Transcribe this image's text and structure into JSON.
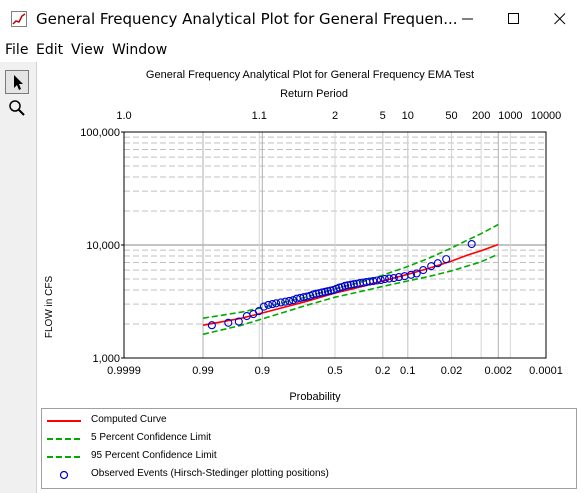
{
  "window": {
    "title": "General Frequency Analytical Plot for General Frequen...",
    "minimize_label": "—",
    "maximize_label": "☐",
    "close_label": "✕"
  },
  "menu": {
    "items": [
      "File",
      "Edit",
      "View",
      "Window"
    ]
  },
  "toolbar": {
    "items": [
      {
        "name": "pointer-tool",
        "icon": "arrow-cursor-icon",
        "active": true
      },
      {
        "name": "zoom-tool",
        "icon": "magnifier-icon",
        "active": false
      }
    ]
  },
  "chart_data": {
    "type": "line",
    "title": "General Frequency Analytical Plot for General Frequency EMA Test",
    "top_axis_label": "Return Period",
    "ylabel": "FLOW in CFS",
    "xlabel": "Probability",
    "y_scale": "log",
    "ylim": [
      1000,
      100000
    ],
    "y_tick_labels": [
      "100,000",
      "10,000",
      "1,000"
    ],
    "x_scale": "normal-probability (exceedance, decreasing left to right)",
    "xlim": [
      0.9999,
      0.0001
    ],
    "x_tick_labels": [
      "0.9999",
      "0.99",
      "0.9",
      "0.5",
      "0.2",
      "0.1",
      "0.02",
      "0.002",
      "0.0001"
    ],
    "x_tick_values": [
      0.9999,
      0.99,
      0.9,
      0.5,
      0.2,
      0.1,
      0.02,
      0.002,
      0.0001
    ],
    "top_tick_labels": [
      "1.0",
      "1.1",
      "2",
      "5",
      "10",
      "50",
      "200",
      "1000",
      "10000"
    ],
    "top_tick_values": [
      1.0001,
      1.1,
      2,
      5,
      10,
      50,
      200,
      1000,
      10000
    ],
    "grid": true,
    "series": [
      {
        "name": "Computed Curve",
        "color": "#ff0000",
        "style": "solid",
        "x": [
          0.99,
          0.95,
          0.9,
          0.7,
          0.5,
          0.3,
          0.2,
          0.1,
          0.05,
          0.02,
          0.01,
          0.005,
          0.002
        ],
        "y": [
          1950,
          2250,
          2500,
          3150,
          3750,
          4350,
          4800,
          5500,
          6200,
          7200,
          8100,
          8900,
          10100
        ]
      },
      {
        "name": "5 Percent Confidence Limit",
        "color": "#00aa00",
        "style": "dashed",
        "x": [
          0.99,
          0.95,
          0.9,
          0.7,
          0.5,
          0.3,
          0.2,
          0.1,
          0.05,
          0.02,
          0.01,
          0.005,
          0.002
        ],
        "y": [
          2250,
          2550,
          2800,
          3450,
          4100,
          4800,
          5400,
          6450,
          7600,
          9400,
          11000,
          12600,
          15200
        ]
      },
      {
        "name": "95 Percent Confidence Limit",
        "color": "#00aa00",
        "style": "dashed",
        "x": [
          0.99,
          0.95,
          0.9,
          0.7,
          0.5,
          0.3,
          0.2,
          0.1,
          0.05,
          0.02,
          0.01,
          0.005,
          0.002
        ],
        "y": [
          1620,
          1950,
          2220,
          2900,
          3450,
          3950,
          4300,
          4800,
          5250,
          5900,
          6500,
          7100,
          8300
        ]
      },
      {
        "name": "Observed Events (Hirsch-Stedinger plotting positions)",
        "color": "#0000cc",
        "style": "markers",
        "x": [
          0.985,
          0.97,
          0.955,
          0.94,
          0.925,
          0.91,
          0.895,
          0.88,
          0.865,
          0.85,
          0.83,
          0.81,
          0.79,
          0.77,
          0.75,
          0.73,
          0.71,
          0.69,
          0.67,
          0.65,
          0.63,
          0.61,
          0.59,
          0.57,
          0.55,
          0.53,
          0.51,
          0.49,
          0.47,
          0.45,
          0.43,
          0.41,
          0.39,
          0.37,
          0.35,
          0.33,
          0.31,
          0.29,
          0.27,
          0.25,
          0.23,
          0.21,
          0.19,
          0.17,
          0.15,
          0.13,
          0.11,
          0.09,
          0.075,
          0.06,
          0.045,
          0.035,
          0.025,
          0.008
        ],
        "y": [
          1950,
          2050,
          2100,
          2350,
          2450,
          2600,
          2850,
          2950,
          3000,
          3050,
          3100,
          3150,
          3200,
          3250,
          3350,
          3400,
          3450,
          3500,
          3550,
          3650,
          3700,
          3750,
          3800,
          3850,
          3900,
          3950,
          4000,
          4100,
          4200,
          4250,
          4350,
          4400,
          4450,
          4500,
          4550,
          4600,
          4650,
          4700,
          4750,
          4800,
          4850,
          4900,
          5000,
          5050,
          5100,
          5200,
          5300,
          5450,
          5600,
          6000,
          6500,
          6900,
          7500,
          10200
        ]
      }
    ]
  }
}
